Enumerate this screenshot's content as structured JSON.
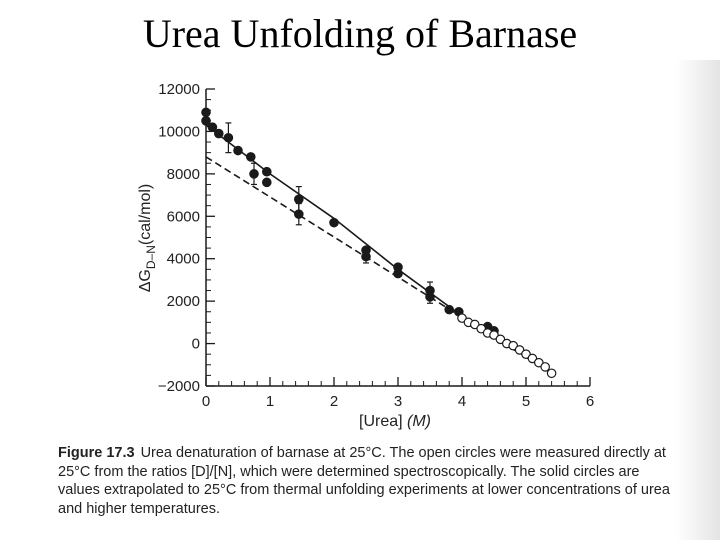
{
  "slide": {
    "title": "Urea Unfolding of Barnase"
  },
  "caption": {
    "figure_label": "Figure 17.3",
    "text": "Urea denaturation of barnase at 25°C. The open circles were measured directly at 25°C from the ratios [D]/[N], which were determined spectroscopically. The solid circles are values extrapolated to 25°C from thermal unfolding experiments at lower concentrations of urea and higher temperatures."
  },
  "chart_data": {
    "type": "scatter",
    "xlabel": "[Urea] (M)",
    "ylabel": "ΔG D–N (cal/mol)",
    "xlim": [
      0,
      6
    ],
    "ylim": [
      -2000,
      12000
    ],
    "x_ticks": [
      0,
      1,
      2,
      3,
      4,
      5,
      6
    ],
    "y_ticks": [
      -2000,
      0,
      2000,
      4000,
      6000,
      8000,
      10000,
      12000
    ],
    "y_tick_labels": [
      "−2000",
      "0",
      "2000",
      "4000",
      "6000",
      "8000",
      "10000",
      "12000"
    ],
    "grid": false,
    "series": [
      {
        "marker": "filled-circle",
        "points": [
          {
            "x": 0.0,
            "y": 10900
          },
          {
            "x": 0.0,
            "y": 10500
          },
          {
            "x": 0.1,
            "y": 10200
          },
          {
            "x": 0.2,
            "y": 9900
          },
          {
            "x": 0.35,
            "y": 9700
          },
          {
            "x": 0.5,
            "y": 9100
          },
          {
            "x": 0.7,
            "y": 8800
          },
          {
            "x": 0.75,
            "y": 8000
          },
          {
            "x": 0.95,
            "y": 8100
          },
          {
            "x": 0.95,
            "y": 7600
          },
          {
            "x": 1.45,
            "y": 6800
          },
          {
            "x": 1.45,
            "y": 6100
          },
          {
            "x": 2.0,
            "y": 5700
          },
          {
            "x": 2.5,
            "y": 4400
          },
          {
            "x": 2.5,
            "y": 4100
          },
          {
            "x": 3.0,
            "y": 3600
          },
          {
            "x": 3.0,
            "y": 3300
          },
          {
            "x": 3.5,
            "y": 2500
          },
          {
            "x": 3.5,
            "y": 2200
          },
          {
            "x": 3.8,
            "y": 1600
          },
          {
            "x": 3.95,
            "y": 1500
          },
          {
            "x": 4.4,
            "y": 800
          },
          {
            "x": 4.5,
            "y": 600
          }
        ],
        "error_bars": [
          {
            "x": 0.35,
            "y": 9700,
            "err": 700
          },
          {
            "x": 0.75,
            "y": 8000,
            "err": 500
          },
          {
            "x": 1.45,
            "y": 6800,
            "err": 600
          },
          {
            "x": 1.45,
            "y": 6100,
            "err": 500
          },
          {
            "x": 2.5,
            "y": 4100,
            "err": 300
          },
          {
            "x": 3.5,
            "y": 2500,
            "err": 400
          },
          {
            "x": 3.5,
            "y": 2200,
            "err": 300
          }
        ]
      },
      {
        "marker": "open-circle",
        "points": [
          {
            "x": 4.0,
            "y": 1200
          },
          {
            "x": 4.1,
            "y": 1000
          },
          {
            "x": 4.2,
            "y": 900
          },
          {
            "x": 4.3,
            "y": 700
          },
          {
            "x": 4.4,
            "y": 500
          },
          {
            "x": 4.5,
            "y": 400
          },
          {
            "x": 4.6,
            "y": 200
          },
          {
            "x": 4.7,
            "y": 0
          },
          {
            "x": 4.8,
            "y": -100
          },
          {
            "x": 4.9,
            "y": -300
          },
          {
            "x": 5.0,
            "y": -500
          },
          {
            "x": 5.1,
            "y": -700
          },
          {
            "x": 5.2,
            "y": -900
          },
          {
            "x": 5.3,
            "y": -1100
          },
          {
            "x": 5.4,
            "y": -1400
          }
        ]
      }
    ],
    "fit_lines": [
      {
        "style": "solid",
        "x": [
          0,
          1.0,
          2.0,
          3.0,
          4.0,
          5.4
        ],
        "y": [
          10300,
          8000,
          5900,
          3500,
          1300,
          -1400
        ]
      },
      {
        "style": "dashed",
        "x": [
          0,
          5.4
        ],
        "y": [
          8800,
          -1400
        ]
      }
    ]
  }
}
